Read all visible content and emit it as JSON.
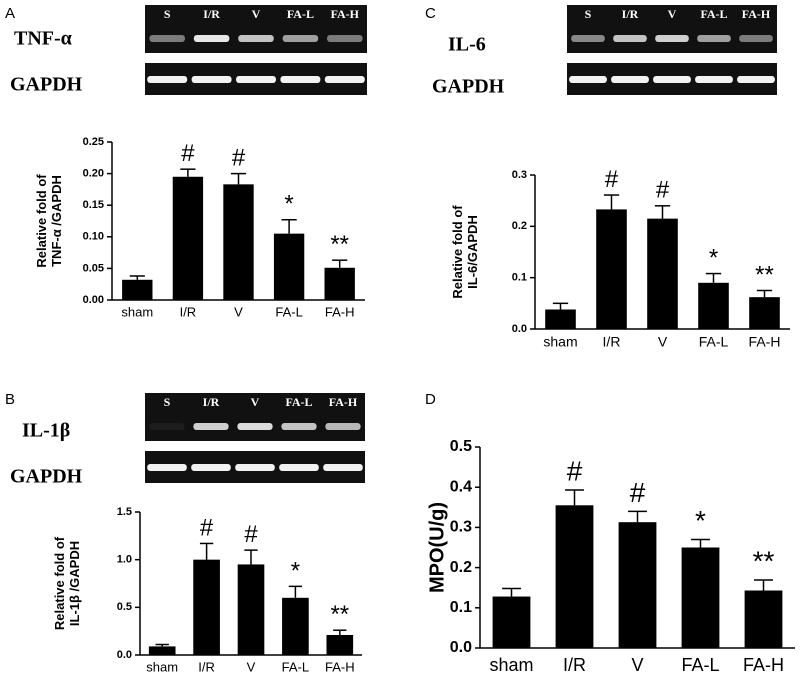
{
  "chart_data": [
    {
      "type": "bar",
      "panel": "A",
      "blot_labels": [
        "S",
        "I/R",
        "V",
        "FA-L",
        "FA-H"
      ],
      "blot_rows": [
        "TNF-α",
        "GAPDH"
      ],
      "ylabel": [
        "Relative fold of",
        "TNF-α /GAPDH"
      ],
      "categories": [
        "sham",
        "I/R",
        "V",
        "FA-L",
        "FA-H"
      ],
      "values": [
        0.032,
        0.195,
        0.183,
        0.105,
        0.051
      ],
      "errors": [
        0.006,
        0.012,
        0.017,
        0.022,
        0.012
      ],
      "annotations": [
        null,
        "#",
        "#",
        "*",
        "**"
      ],
      "color": "#000000",
      "ylim": [
        0,
        0.25
      ],
      "yticks": [
        {
          "value": 0,
          "label": "0.00"
        },
        {
          "value": 0.05,
          "label": "0.05"
        },
        {
          "value": 0.1,
          "label": "0.10"
        },
        {
          "value": 0.15,
          "label": "0.15"
        },
        {
          "value": 0.2,
          "label": "0.20"
        },
        {
          "value": 0.25,
          "label": "0.25"
        }
      ]
    },
    {
      "type": "bar",
      "panel": "C",
      "blot_labels": [
        "S",
        "I/R",
        "V",
        "FA-L",
        "FA-H"
      ],
      "blot_rows": [
        "IL-6",
        "GAPDH"
      ],
      "ylabel": [
        "Relative fold of",
        "IL-6/GAPDH"
      ],
      "categories": [
        "sham",
        "I/R",
        "V",
        "FA-L",
        "FA-H"
      ],
      "values": [
        0.038,
        0.233,
        0.215,
        0.09,
        0.062
      ],
      "errors": [
        0.012,
        0.028,
        0.025,
        0.018,
        0.013
      ],
      "annotations": [
        null,
        "#",
        "#",
        "*",
        "**"
      ],
      "color": "#000000",
      "ylim": [
        0,
        0.3
      ],
      "yticks": [
        {
          "value": 0,
          "label": "0.0"
        },
        {
          "value": 0.1,
          "label": "0.1"
        },
        {
          "value": 0.2,
          "label": "0.2"
        },
        {
          "value": 0.3,
          "label": "0.3"
        }
      ]
    },
    {
      "type": "bar",
      "panel": "B",
      "blot_labels": [
        "S",
        "I/R",
        "V",
        "FA-L",
        "FA-H"
      ],
      "blot_rows": [
        "IL-1β",
        "GAPDH"
      ],
      "ylabel": [
        "Relative fold of",
        "IL-1β /GAPDH"
      ],
      "categories": [
        "sham",
        "I/R",
        "V",
        "FA-L",
        "FA-H"
      ],
      "values": [
        0.09,
        1.0,
        0.95,
        0.6,
        0.21
      ],
      "errors": [
        0.02,
        0.17,
        0.15,
        0.12,
        0.05
      ],
      "annotations": [
        null,
        "#",
        "#",
        "*",
        "**"
      ],
      "color": "#000000",
      "ylim": [
        0,
        1.5
      ],
      "yticks": [
        {
          "value": 0,
          "label": "0.0"
        },
        {
          "value": 0.5,
          "label": "0.5"
        },
        {
          "value": 1,
          "label": "1.0"
        },
        {
          "value": 1.5,
          "label": "1.5"
        }
      ]
    },
    {
      "type": "bar",
      "panel": "D",
      "ylabel": [
        "MPO(U/g)"
      ],
      "categories": [
        "sham",
        "I/R",
        "V",
        "FA-L",
        "FA-H"
      ],
      "values": [
        0.128,
        0.355,
        0.313,
        0.25,
        0.143
      ],
      "errors": [
        0.02,
        0.038,
        0.027,
        0.02,
        0.026
      ],
      "annotations": [
        null,
        "#",
        "#",
        "*",
        "**"
      ],
      "color": "#000000",
      "ylim": [
        0,
        0.5
      ],
      "yticks": [
        {
          "value": 0,
          "label": "0.0"
        },
        {
          "value": 0.1,
          "label": "0.1"
        },
        {
          "value": 0.2,
          "label": "0.2"
        },
        {
          "value": 0.3,
          "label": "0.3"
        },
        {
          "value": 0.4,
          "label": "0.4"
        },
        {
          "value": 0.5,
          "label": "0.5"
        }
      ]
    }
  ]
}
